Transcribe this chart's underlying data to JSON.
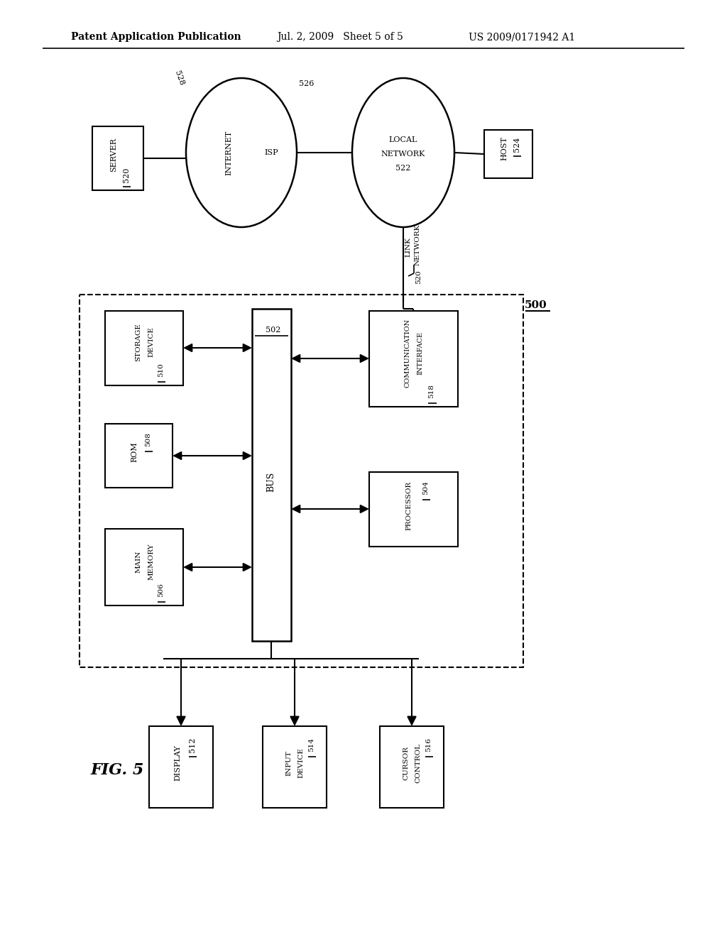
{
  "title_left": "Patent Application Publication",
  "title_mid": "Jul. 2, 2009   Sheet 5 of 5",
  "title_right": "US 2009/0171942 A1",
  "bg_color": "#ffffff",
  "line_color": "#000000",
  "fig_label": "FIG. 5"
}
